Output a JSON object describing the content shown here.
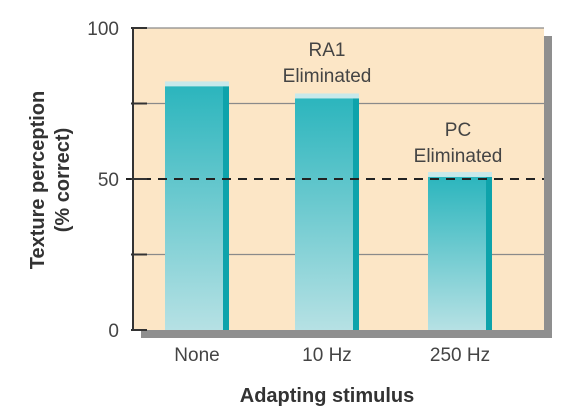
{
  "chart_data": {
    "type": "bar",
    "categories": [
      "None",
      "10 Hz",
      "250 Hz"
    ],
    "values": [
      81,
      77,
      51
    ],
    "xlabel": "Adapting stimulus",
    "ylabel_lines": [
      "Texture perception",
      "(% correct)"
    ],
    "ylim": [
      0,
      100
    ],
    "yticks": [
      0,
      50,
      100
    ],
    "grid": true,
    "reference_line": 50,
    "annotations": [
      {
        "category": "10 Hz",
        "lines": [
          "RA1",
          "Eliminated"
        ]
      },
      {
        "category": "250 Hz",
        "lines": [
          "PC",
          "Eliminated"
        ]
      }
    ],
    "colors": {
      "plot_background": "#fce6c6",
      "bar_top": "#2bb5bd",
      "bar_bottom": "#b6e1e4",
      "bar_edge": "#0ea3ab",
      "bar_highlight": "#c8e9ea",
      "grid": "#8a8a8a",
      "axis": "#333333",
      "reference_line": "#222222",
      "shadow": "#8f8f8f"
    }
  }
}
